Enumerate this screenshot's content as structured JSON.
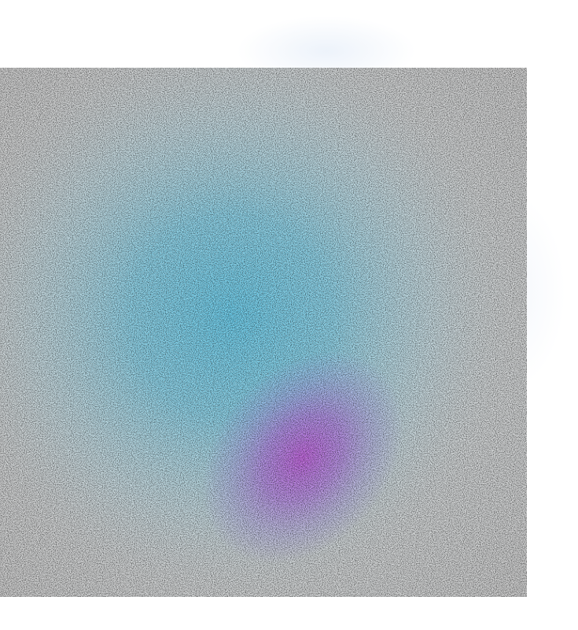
{
  "artwork": {
    "description_colors": {
      "base_gray": "#c8c8c8",
      "cyan_glow": "#5cc8e8",
      "magenta_core": "#b84fd8",
      "violet_halo": "#9a7fe0",
      "haze": "#dfe8f5"
    }
  }
}
